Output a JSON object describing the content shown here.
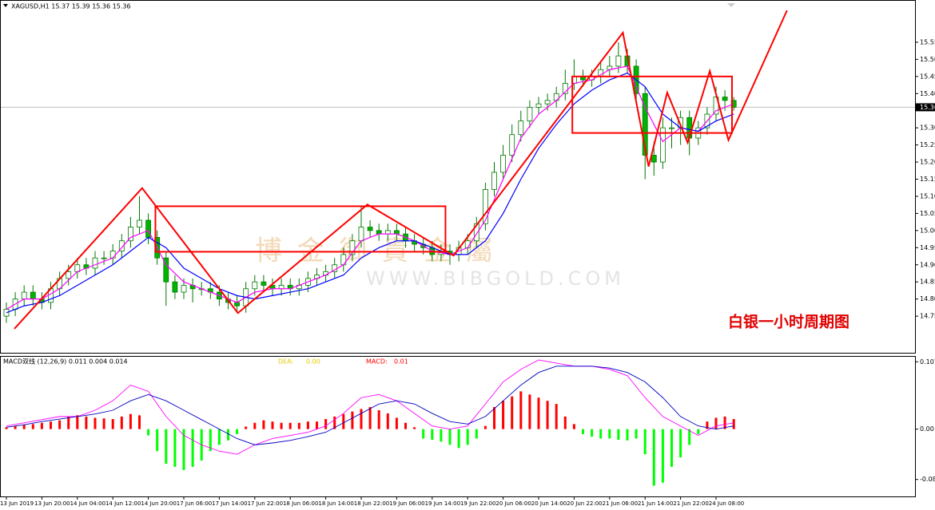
{
  "chart_data": [
    {
      "type": "candlestick",
      "title": "XAGUSD,H1  15.37 15.39 15.36 15.36",
      "categories": [
        "13 Jun 2019",
        null,
        null,
        null,
        "13 Jun 20:00",
        null,
        null,
        null,
        "14 Jun 04:00",
        null,
        null,
        null,
        "14 Jun 12:00",
        null,
        null,
        null,
        "14 Jun 20:00",
        null,
        null,
        null,
        "17 Jun 06:00",
        null,
        null,
        null,
        "17 Jun 14:00",
        null,
        null,
        null,
        "17 Jun 22:00",
        null,
        null,
        null,
        "18 Jun 06:00",
        null,
        null,
        null,
        "18 Jun 14:00",
        null,
        null,
        null,
        "18 Jun 22:00",
        null,
        null,
        null,
        "19 Jun 06:00",
        null,
        null,
        null,
        "19 Jun 14:00",
        null,
        null,
        null,
        "19 Jun 22:00",
        null,
        null,
        null,
        "20 Jun 06:00",
        null,
        null,
        null,
        "20 Jun 14:00",
        null,
        null,
        null,
        "20 Jun 22:00",
        null,
        null,
        null,
        "21 Jun 06:00",
        null,
        null,
        null,
        "21 Jun 14:00",
        null,
        null,
        null,
        "21 Jun 22:00",
        null,
        null,
        null,
        "24 Jun 08:00",
        null,
        null
      ],
      "open": [
        14.75,
        14.77,
        14.8,
        14.82,
        14.8,
        14.79,
        14.83,
        14.86,
        14.88,
        14.9,
        14.89,
        14.92,
        14.92,
        14.94,
        14.97,
        15.01,
        15.03,
        14.98,
        14.92,
        14.85,
        14.82,
        14.84,
        14.83,
        14.83,
        14.82,
        14.8,
        14.79,
        14.78,
        14.83,
        14.85,
        14.84,
        14.83,
        14.84,
        14.83,
        14.84,
        14.86,
        14.87,
        14.88,
        14.9,
        14.93,
        14.97,
        15.01,
        15.0,
        14.99,
        15.0,
        14.99,
        14.97,
        14.96,
        14.95,
        14.93,
        14.94,
        14.93,
        14.95,
        14.97,
        15.02,
        15.12,
        15.17,
        15.22,
        15.28,
        15.32,
        15.36,
        15.37,
        15.38,
        15.4,
        15.43,
        15.45,
        15.44,
        15.45,
        15.47,
        15.48,
        15.51,
        15.48,
        15.4,
        15.22,
        15.2,
        15.3,
        15.3,
        15.33,
        15.27,
        15.3,
        15.34,
        15.39,
        15.38
      ],
      "high": [
        14.79,
        14.82,
        14.84,
        14.84,
        14.82,
        14.85,
        14.88,
        14.9,
        14.92,
        14.92,
        14.94,
        14.94,
        14.96,
        14.99,
        15.04,
        15.1,
        15.05,
        15.0,
        14.94,
        14.87,
        14.86,
        14.86,
        14.85,
        14.85,
        14.84,
        14.82,
        14.81,
        14.85,
        14.87,
        14.87,
        14.86,
        14.86,
        14.86,
        14.86,
        14.88,
        14.89,
        14.9,
        14.92,
        14.95,
        14.99,
        15.07,
        15.03,
        15.02,
        15.02,
        15.02,
        15.01,
        14.99,
        14.98,
        14.97,
        14.96,
        14.96,
        14.97,
        14.99,
        15.04,
        15.14,
        15.2,
        15.25,
        15.31,
        15.35,
        15.38,
        15.39,
        15.4,
        15.42,
        15.47,
        15.5,
        15.47,
        15.47,
        15.49,
        15.51,
        15.55,
        15.53,
        15.5,
        15.42,
        15.26,
        15.33,
        15.33,
        15.35,
        15.35,
        15.32,
        15.36,
        15.42,
        15.41,
        15.39
      ],
      "low": [
        14.73,
        14.75,
        14.78,
        14.78,
        14.77,
        14.77,
        14.81,
        14.84,
        14.86,
        14.87,
        14.87,
        14.9,
        14.9,
        14.92,
        14.95,
        14.99,
        14.96,
        14.9,
        14.78,
        14.8,
        14.8,
        14.79,
        14.81,
        14.8,
        14.78,
        14.77,
        14.76,
        14.76,
        14.81,
        14.82,
        14.81,
        14.81,
        14.81,
        14.81,
        14.82,
        14.84,
        14.85,
        14.86,
        14.88,
        14.91,
        14.95,
        14.98,
        14.97,
        14.97,
        14.97,
        14.95,
        14.94,
        14.93,
        14.91,
        14.91,
        14.9,
        14.91,
        14.93,
        14.95,
        15.0,
        15.1,
        15.15,
        15.2,
        15.26,
        15.3,
        15.34,
        15.35,
        15.36,
        15.38,
        15.41,
        15.42,
        15.42,
        15.43,
        15.45,
        15.46,
        15.46,
        15.38,
        15.15,
        15.16,
        15.18,
        15.24,
        15.25,
        15.22,
        15.25,
        15.28,
        15.32,
        15.35,
        15.35
      ],
      "close": [
        14.77,
        14.8,
        14.82,
        14.8,
        14.79,
        14.83,
        14.86,
        14.88,
        14.9,
        14.89,
        14.92,
        14.92,
        14.94,
        14.97,
        15.01,
        15.03,
        14.98,
        14.92,
        14.85,
        14.82,
        14.84,
        14.83,
        14.83,
        14.82,
        14.8,
        14.79,
        14.78,
        14.83,
        14.85,
        14.84,
        14.83,
        14.84,
        14.83,
        14.84,
        14.86,
        14.87,
        14.88,
        14.9,
        14.93,
        14.97,
        15.01,
        15.0,
        14.99,
        15.0,
        14.99,
        14.97,
        14.96,
        14.95,
        14.93,
        14.94,
        14.93,
        14.95,
        14.97,
        15.02,
        15.12,
        15.17,
        15.22,
        15.28,
        15.32,
        15.36,
        15.37,
        15.38,
        15.4,
        15.43,
        15.45,
        15.44,
        15.45,
        15.47,
        15.48,
        15.51,
        15.48,
        15.4,
        15.22,
        15.2,
        15.3,
        15.3,
        15.33,
        15.27,
        15.3,
        15.34,
        15.39,
        15.38,
        15.36
      ],
      "up_color": "#ffffff",
      "down_color": "#00b400",
      "wick_color": "#007800",
      "ma_x": [
        0,
        2,
        4,
        6,
        8,
        10,
        12,
        14,
        16,
        18,
        20,
        22,
        24,
        26,
        28,
        30,
        32,
        34,
        36,
        38,
        40,
        42,
        44,
        46,
        48,
        50,
        52,
        54,
        56,
        58,
        60,
        62,
        64,
        66,
        68,
        70,
        72,
        74,
        76,
        78,
        80,
        82
      ],
      "moving_averages": [
        {
          "color": "#ff00ff",
          "values": [
            14.77,
            14.8,
            14.8,
            14.83,
            14.88,
            14.9,
            14.92,
            14.98,
            15.0,
            14.9,
            14.85,
            14.83,
            14.81,
            14.79,
            14.82,
            14.83,
            14.83,
            14.85,
            14.87,
            14.9,
            14.97,
            14.99,
            14.99,
            14.97,
            14.94,
            14.93,
            14.95,
            15.03,
            15.15,
            15.27,
            15.34,
            15.38,
            15.43,
            15.44,
            15.47,
            15.48,
            15.36,
            15.26,
            15.3,
            15.29,
            15.35,
            15.37
          ]
        },
        {
          "color": "#0000ff",
          "values": [
            14.76,
            14.78,
            14.79,
            14.81,
            14.84,
            14.87,
            14.9,
            14.94,
            14.98,
            14.95,
            14.89,
            14.86,
            14.83,
            14.81,
            14.8,
            14.81,
            14.82,
            14.83,
            14.85,
            14.87,
            14.92,
            14.95,
            14.97,
            14.97,
            14.95,
            14.93,
            14.93,
            14.97,
            15.05,
            15.15,
            15.24,
            15.31,
            15.37,
            15.41,
            15.44,
            15.46,
            15.42,
            15.34,
            15.3,
            15.29,
            15.32,
            15.34
          ]
        }
      ],
      "ylim": [
        14.643,
        15.671
      ],
      "yticks": [
        15.55,
        {
          "value": 15.5,
          "label": "15.50"
        },
        15.45,
        {
          "value": 15.4,
          "label": "15.40"
        },
        {
          "value": 15.3,
          "label": "15.30"
        },
        15.25,
        {
          "value": 15.2,
          "label": "15.20"
        },
        15.15,
        {
          "value": 15.1,
          "label": "15.10"
        },
        15.05,
        {
          "value": 15.0,
          "label": "15.00"
        },
        14.95,
        {
          "value": 14.9,
          "label": "14.90"
        },
        14.85,
        {
          "value": 14.8,
          "label": "14.80"
        },
        14.75
      ],
      "current_price": 15.36,
      "annotations": {
        "color": "#ff0000",
        "zigzag": {
          "x": [
            0.9,
            15.3,
            26.1,
            40.7,
            50.4,
            69.5,
            72.4,
            74.5,
            76.8,
            79.3,
            81.4,
            88.0
          ],
          "y": [
            14.713,
            15.124,
            14.759,
            15.076,
            14.927,
            15.578,
            15.187,
            15.403,
            15.257,
            15.466,
            15.264,
            15.643
          ]
        },
        "rectangles": [
          {
            "x": [
              16.8,
              49.5
            ],
            "y": [
              14.938,
              15.071
            ]
          },
          {
            "x": [
              63.8,
              81.8
            ],
            "y": [
              15.285,
              15.45
            ]
          }
        ]
      },
      "caption": "白银一小时周期图",
      "watermark": [
        "博 金 御 貴 金 屬",
        "WWW.BIBGOLD.COM"
      ]
    },
    {
      "type": "macd",
      "title": "MACD双线 (12,26,9) 0.011 0.004 0.014",
      "legend": [
        {
          "name": "DEA:",
          "value_label": "0.00",
          "color": "#e6c800"
        },
        {
          "name": "MACD:",
          "value_label": "0.01",
          "color": "#ff0000"
        }
      ],
      "histogram": [
        0.003,
        0.005,
        0.007,
        0.008,
        0.01,
        0.012,
        0.014,
        0.02,
        0.022,
        0.02,
        0.018,
        0.017,
        0.016,
        0.02,
        0.024,
        0.022,
        -0.01,
        -0.035,
        -0.055,
        -0.06,
        -0.065,
        -0.06,
        -0.05,
        -0.035,
        -0.025,
        -0.018,
        -0.008,
        0.004,
        0.01,
        0.014,
        0.012,
        0.01,
        0.01,
        0.01,
        0.012,
        0.012,
        0.016,
        0.02,
        0.024,
        0.028,
        0.032,
        0.035,
        0.03,
        0.025,
        0.018,
        0.01,
        0.003,
        -0.015,
        -0.017,
        -0.02,
        -0.025,
        -0.03,
        -0.025,
        -0.015,
        0.005,
        0.035,
        0.045,
        0.052,
        0.06,
        0.055,
        0.05,
        0.045,
        0.04,
        0.02,
        0.008,
        -0.008,
        -0.012,
        -0.015,
        -0.015,
        -0.017,
        -0.018,
        -0.015,
        -0.04,
        -0.09,
        -0.085,
        -0.06,
        -0.045,
        -0.025,
        -0.008,
        0.012,
        0.018,
        0.02,
        0.016
      ],
      "positive_color": "#ff0000",
      "negative_color": "#00ff00",
      "x": [
        0,
        2,
        4,
        6,
        8,
        10,
        12,
        14,
        16,
        18,
        20,
        22,
        24,
        26,
        28,
        30,
        32,
        34,
        36,
        38,
        40,
        42,
        44,
        46,
        48,
        50,
        52,
        54,
        56,
        58,
        60,
        62,
        64,
        66,
        68,
        70,
        72,
        74,
        76,
        78,
        80,
        82
      ],
      "lines": [
        {
          "color": "#ff00ff",
          "values": [
            0.005,
            0.01,
            0.015,
            0.02,
            0.02,
            0.03,
            0.045,
            0.07,
            0.06,
            0.02,
            -0.01,
            -0.025,
            -0.035,
            -0.04,
            -0.025,
            -0.015,
            -0.01,
            -0.005,
            0.005,
            0.025,
            0.05,
            0.055,
            0.045,
            0.025,
            0.005,
            0.0,
            0.005,
            0.04,
            0.075,
            0.095,
            0.11,
            0.105,
            0.1,
            0.1,
            0.095,
            0.085,
            0.05,
            0.02,
            0.005,
            -0.01,
            0.005,
            0.01
          ]
        },
        {
          "color": "#0000c0",
          "values": [
            0.003,
            0.007,
            0.012,
            0.016,
            0.02,
            0.024,
            0.03,
            0.045,
            0.055,
            0.045,
            0.03,
            0.015,
            0.0,
            -0.015,
            -0.025,
            -0.022,
            -0.018,
            -0.012,
            -0.005,
            0.01,
            0.025,
            0.04,
            0.045,
            0.04,
            0.025,
            0.012,
            0.008,
            0.02,
            0.045,
            0.07,
            0.09,
            0.1,
            0.1,
            0.1,
            0.097,
            0.09,
            0.075,
            0.05,
            0.02,
            0.005,
            0.0,
            0.005
          ]
        }
      ],
      "ylim": [
        -0.107,
        0.115
      ],
      "yticks": [
        0.107,
        {
          "value": 0,
          "label": "0.00"
        },
        -0.08
      ]
    }
  ]
}
